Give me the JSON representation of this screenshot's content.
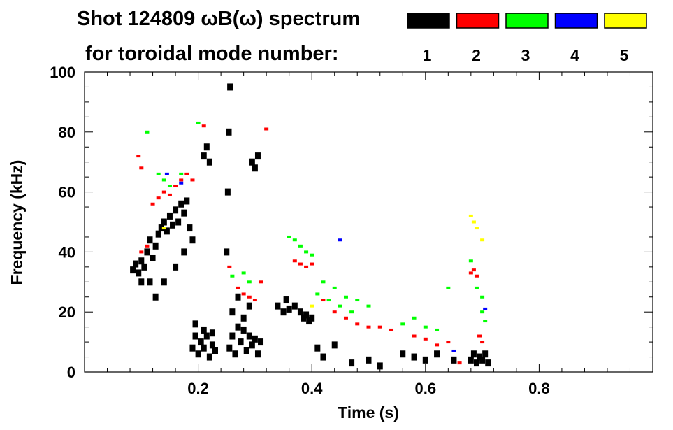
{
  "chart_data": {
    "type": "scatter",
    "title_line1": "Shot 124809 ωB(ω) spectrum",
    "title_line2": "for toroidal mode number:",
    "xlabel": "Time (s)",
    "ylabel": "Frequency (kHz)",
    "xlim": [
      0.0,
      1.0
    ],
    "ylim": [
      0,
      100
    ],
    "xticks": [
      {
        "value": 0.2,
        "label": "0.2"
      },
      {
        "value": 0.4,
        "label": "0.4"
      },
      {
        "value": 0.6,
        "label": "0.6"
      },
      {
        "value": 0.8,
        "label": "0.8"
      }
    ],
    "yticks": [
      {
        "value": 0,
        "label": "0"
      },
      {
        "value": 20,
        "label": "20"
      },
      {
        "value": 40,
        "label": "40"
      },
      {
        "value": 60,
        "label": "60"
      },
      {
        "value": 80,
        "label": "80"
      },
      {
        "value": 100,
        "label": "100"
      }
    ],
    "grid": false,
    "legend_position": "top-right",
    "legend": [
      {
        "label": "1",
        "color": "#000000"
      },
      {
        "label": "2",
        "color": "#ff0000"
      },
      {
        "label": "3",
        "color": "#00ff00"
      },
      {
        "label": "4",
        "color": "#0000ff"
      },
      {
        "label": "5",
        "color": "#ffff00"
      }
    ],
    "series": [
      {
        "name": "1",
        "color": "#000000",
        "points": [
          [
            0.085,
            34
          ],
          [
            0.09,
            36
          ],
          [
            0.095,
            33
          ],
          [
            0.1,
            37
          ],
          [
            0.1,
            30
          ],
          [
            0.105,
            35
          ],
          [
            0.11,
            40
          ],
          [
            0.115,
            44
          ],
          [
            0.12,
            38
          ],
          [
            0.125,
            42
          ],
          [
            0.13,
            46
          ],
          [
            0.135,
            48
          ],
          [
            0.14,
            50
          ],
          [
            0.145,
            47
          ],
          [
            0.15,
            52
          ],
          [
            0.155,
            49
          ],
          [
            0.16,
            54
          ],
          [
            0.165,
            50
          ],
          [
            0.17,
            56
          ],
          [
            0.175,
            53
          ],
          [
            0.18,
            57
          ],
          [
            0.185,
            48
          ],
          [
            0.19,
            44
          ],
          [
            0.115,
            30
          ],
          [
            0.125,
            25
          ],
          [
            0.14,
            30
          ],
          [
            0.16,
            35
          ],
          [
            0.175,
            40
          ],
          [
            0.19,
            8
          ],
          [
            0.195,
            12
          ],
          [
            0.2,
            6
          ],
          [
            0.205,
            10
          ],
          [
            0.21,
            8
          ],
          [
            0.215,
            12
          ],
          [
            0.22,
            5
          ],
          [
            0.225,
            9
          ],
          [
            0.23,
            7
          ],
          [
            0.195,
            16
          ],
          [
            0.21,
            14
          ],
          [
            0.225,
            13
          ],
          [
            0.21,
            72
          ],
          [
            0.215,
            75
          ],
          [
            0.22,
            70
          ],
          [
            0.25,
            40
          ],
          [
            0.252,
            60
          ],
          [
            0.254,
            80
          ],
          [
            0.256,
            95
          ],
          [
            0.255,
            8
          ],
          [
            0.26,
            12
          ],
          [
            0.265,
            6
          ],
          [
            0.27,
            15
          ],
          [
            0.275,
            10
          ],
          [
            0.28,
            14
          ],
          [
            0.285,
            7
          ],
          [
            0.29,
            12
          ],
          [
            0.295,
            9
          ],
          [
            0.3,
            11
          ],
          [
            0.305,
            6
          ],
          [
            0.31,
            10
          ],
          [
            0.26,
            20
          ],
          [
            0.27,
            25
          ],
          [
            0.28,
            18
          ],
          [
            0.29,
            22
          ],
          [
            0.295,
            70
          ],
          [
            0.3,
            68
          ],
          [
            0.305,
            72
          ],
          [
            0.34,
            22
          ],
          [
            0.35,
            20
          ],
          [
            0.355,
            24
          ],
          [
            0.36,
            21
          ],
          [
            0.37,
            22
          ],
          [
            0.38,
            20
          ],
          [
            0.385,
            18
          ],
          [
            0.39,
            19
          ],
          [
            0.395,
            17
          ],
          [
            0.4,
            18
          ],
          [
            0.41,
            8
          ],
          [
            0.42,
            5
          ],
          [
            0.44,
            9
          ],
          [
            0.47,
            3
          ],
          [
            0.5,
            4
          ],
          [
            0.52,
            2
          ],
          [
            0.56,
            6
          ],
          [
            0.58,
            5
          ],
          [
            0.6,
            4
          ],
          [
            0.62,
            6
          ],
          [
            0.65,
            4
          ],
          [
            0.68,
            4
          ],
          [
            0.685,
            6
          ],
          [
            0.69,
            3
          ],
          [
            0.695,
            5
          ],
          [
            0.7,
            4
          ],
          [
            0.705,
            6
          ],
          [
            0.71,
            3
          ]
        ]
      },
      {
        "name": "2",
        "color": "#ff0000",
        "points": [
          [
            0.095,
            72
          ],
          [
            0.1,
            68
          ],
          [
            0.1,
            40
          ],
          [
            0.11,
            42
          ],
          [
            0.12,
            56
          ],
          [
            0.13,
            58
          ],
          [
            0.14,
            60
          ],
          [
            0.15,
            59
          ],
          [
            0.16,
            62
          ],
          [
            0.17,
            64
          ],
          [
            0.18,
            66
          ],
          [
            0.19,
            64
          ],
          [
            0.21,
            82
          ],
          [
            0.255,
            35
          ],
          [
            0.27,
            28
          ],
          [
            0.28,
            26
          ],
          [
            0.29,
            25
          ],
          [
            0.3,
            24
          ],
          [
            0.31,
            30
          ],
          [
            0.32,
            81
          ],
          [
            0.37,
            37
          ],
          [
            0.38,
            36
          ],
          [
            0.39,
            35
          ],
          [
            0.4,
            36
          ],
          [
            0.42,
            24
          ],
          [
            0.44,
            20
          ],
          [
            0.46,
            18
          ],
          [
            0.48,
            16
          ],
          [
            0.5,
            15
          ],
          [
            0.52,
            15
          ],
          [
            0.54,
            14
          ],
          [
            0.58,
            12
          ],
          [
            0.6,
            11
          ],
          [
            0.62,
            9
          ],
          [
            0.64,
            10
          ],
          [
            0.66,
            3
          ],
          [
            0.68,
            33
          ],
          [
            0.685,
            34
          ],
          [
            0.69,
            32
          ],
          [
            0.695,
            12
          ],
          [
            0.7,
            10
          ]
        ]
      },
      {
        "name": "3",
        "color": "#00ff00",
        "points": [
          [
            0.11,
            80
          ],
          [
            0.13,
            66
          ],
          [
            0.14,
            64
          ],
          [
            0.15,
            62
          ],
          [
            0.17,
            66
          ],
          [
            0.2,
            83
          ],
          [
            0.26,
            32
          ],
          [
            0.28,
            33
          ],
          [
            0.29,
            30
          ],
          [
            0.36,
            45
          ],
          [
            0.37,
            44
          ],
          [
            0.38,
            42
          ],
          [
            0.39,
            40
          ],
          [
            0.4,
            39
          ],
          [
            0.42,
            30
          ],
          [
            0.44,
            28
          ],
          [
            0.46,
            25
          ],
          [
            0.48,
            24
          ],
          [
            0.5,
            22
          ],
          [
            0.41,
            26
          ],
          [
            0.43,
            24
          ],
          [
            0.45,
            22
          ],
          [
            0.47,
            20
          ],
          [
            0.56,
            16
          ],
          [
            0.58,
            18
          ],
          [
            0.6,
            15
          ],
          [
            0.62,
            14
          ],
          [
            0.64,
            28
          ],
          [
            0.68,
            37
          ],
          [
            0.69,
            28
          ],
          [
            0.7,
            25
          ],
          [
            0.7,
            20
          ],
          [
            0.705,
            17
          ]
        ]
      },
      {
        "name": "4",
        "color": "#0000ff",
        "points": [
          [
            0.145,
            66
          ],
          [
            0.17,
            63
          ],
          [
            0.45,
            44
          ],
          [
            0.65,
            7
          ],
          [
            0.705,
            21
          ]
        ]
      },
      {
        "name": "5",
        "color": "#ffff00",
        "points": [
          [
            0.68,
            52
          ],
          [
            0.685,
            50
          ],
          [
            0.69,
            48
          ],
          [
            0.7,
            44
          ],
          [
            0.14,
            48
          ],
          [
            0.4,
            22
          ]
        ]
      }
    ]
  }
}
